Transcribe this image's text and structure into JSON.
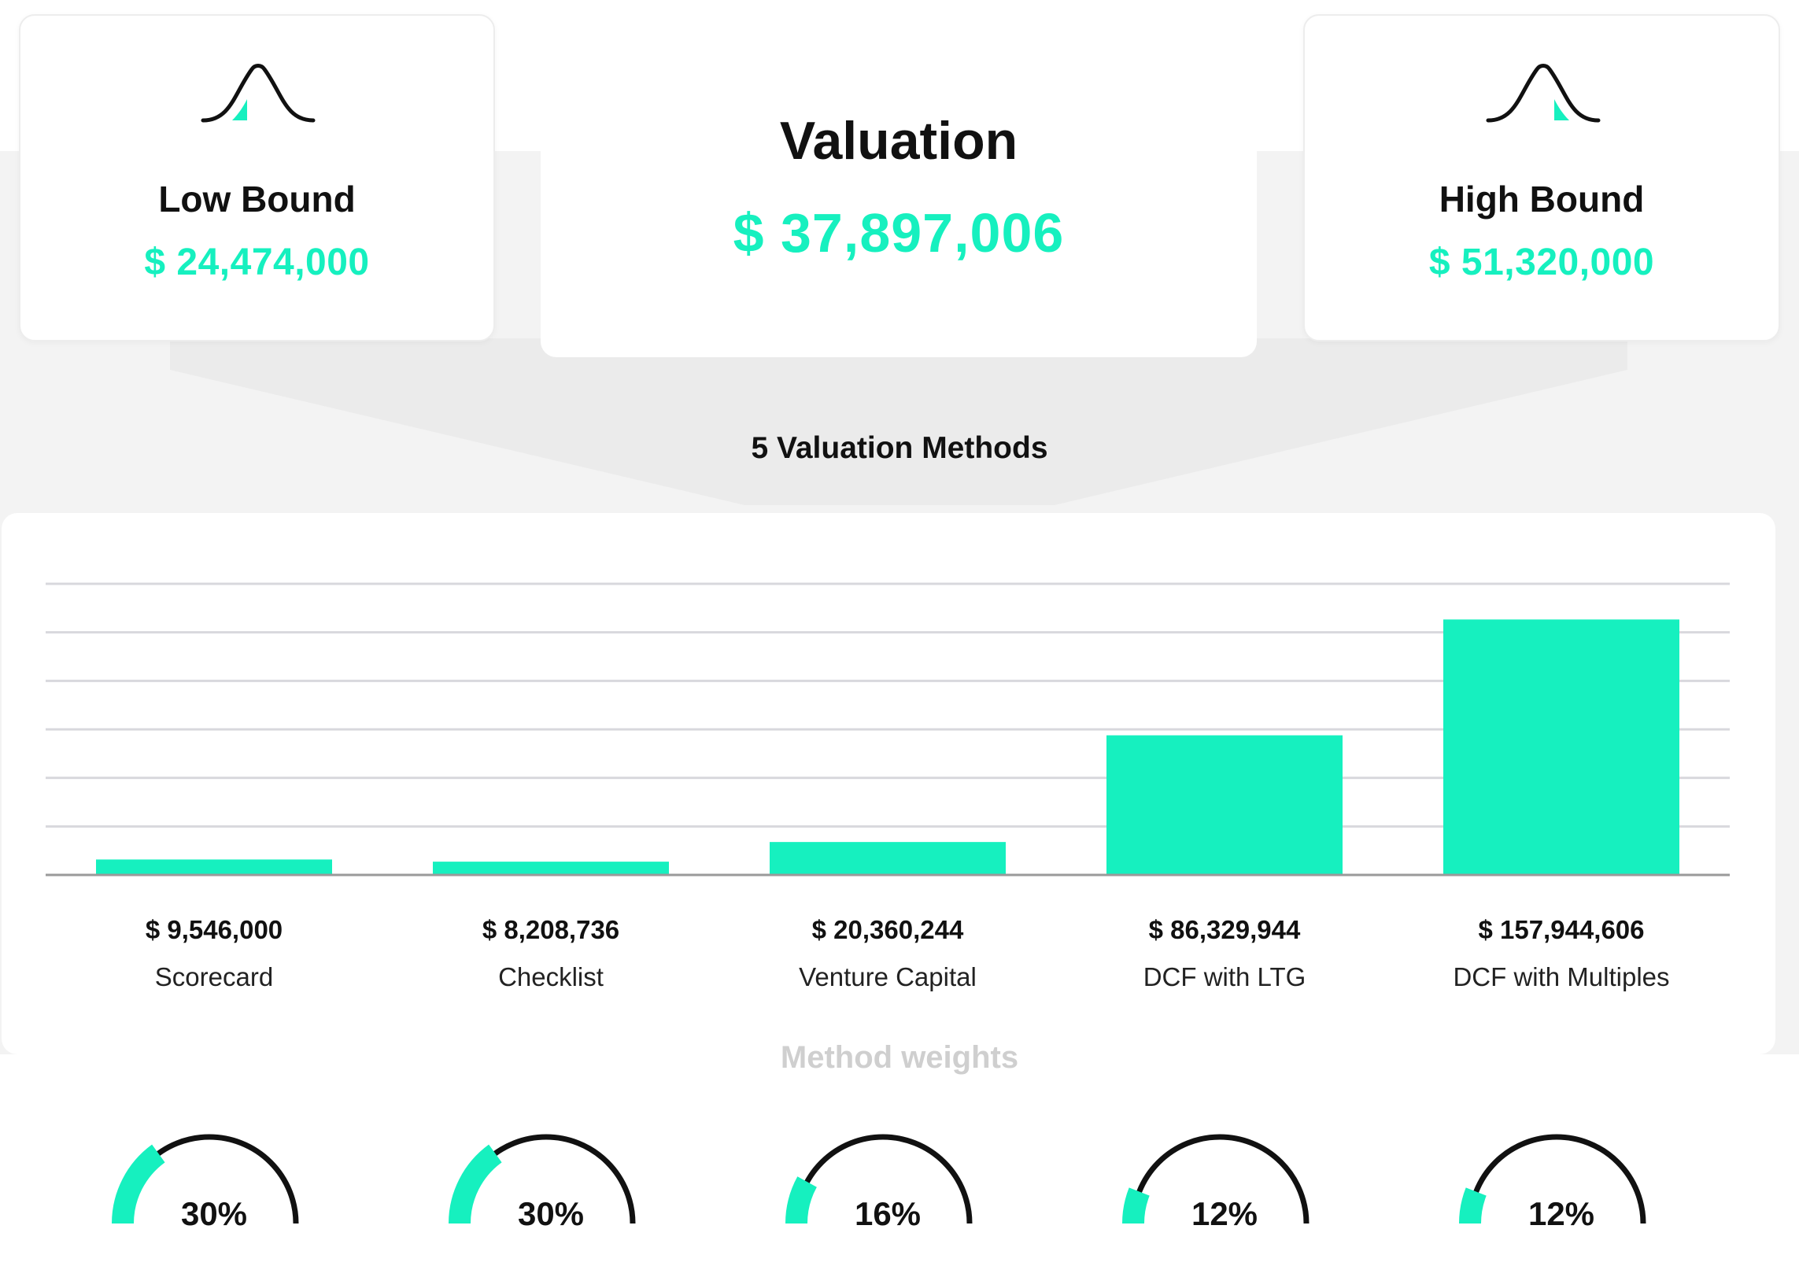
{
  "colors": {
    "accent": "#16f0bf",
    "dark": "#111111",
    "grid": "#d8d8dd",
    "axis": "#9a9a9a",
    "muted": "#cfcfcf",
    "panel_bg": "#f3f3f3"
  },
  "summary": {
    "low": {
      "title": "Low Bound",
      "value": "$ 24,474,000",
      "icon": "bell-curve-left-tail-icon"
    },
    "center": {
      "title": "Valuation",
      "value": "$ 37,897,006"
    },
    "high": {
      "title": "High Bound",
      "value": "$ 51,320,000",
      "icon": "bell-curve-right-tail-icon"
    }
  },
  "methods_title": "5 Valuation Methods",
  "weights_title": "Method weights",
  "chart_data": [
    {
      "type": "bar",
      "categories": [
        "Scorecard",
        "Checklist",
        "Venture Capital",
        "DCF with LTG",
        "DCF with Multiples"
      ],
      "values": [
        9546000,
        8208736,
        20360244,
        86329944,
        157944606
      ],
      "value_labels": [
        "$ 9,546,000",
        "$ 8,208,736",
        "$ 20,360,244",
        "$ 86,329,944",
        "$ 157,944,606"
      ],
      "ylim": [
        0,
        180000000
      ],
      "grid": true,
      "color": "#16f0bf"
    },
    {
      "type": "gauge",
      "categories": [
        "Scorecard",
        "Checklist",
        "Venture Capital",
        "DCF with LTG",
        "DCF with Multiples"
      ],
      "values": [
        30,
        30,
        16,
        12,
        12
      ],
      "value_labels": [
        "30%",
        "30%",
        "16%",
        "12%",
        "12%"
      ],
      "max": 100,
      "color": "#16f0bf"
    }
  ]
}
